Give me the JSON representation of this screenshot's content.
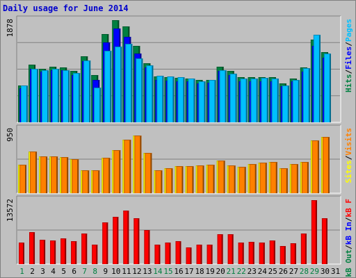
{
  "title": "Daily usage for June 2014",
  "colors": {
    "hits": "#008040",
    "files": "#0000ff",
    "pages": "#00c0ff",
    "visits": "#ffff00",
    "sites": "#ff8000",
    "kbin": "#0000ff",
    "kbout": "#008040",
    "kbf": "#ff0000",
    "weekend": "#008040",
    "weekday": "#000000"
  },
  "chart_data": [
    {
      "type": "bar",
      "categories": [
        "1",
        "2",
        "3",
        "4",
        "5",
        "6",
        "7",
        "8",
        "9",
        "10",
        "11",
        "12",
        "13",
        "14",
        "15",
        "16",
        "17",
        "18",
        "19",
        "20",
        "21",
        "22",
        "23",
        "24",
        "25",
        "26",
        "27",
        "28",
        "29",
        "30",
        "31"
      ],
      "ymax_label": "1878",
      "ylim": [
        0,
        1878
      ],
      "side_labels": [
        "Pages",
        "Files",
        "Hits"
      ],
      "series": [
        {
          "name": "Hits",
          "values": [
            680,
            1060,
            990,
            1020,
            1010,
            940,
            1220,
            870,
            1620,
            1878,
            1760,
            1400,
            1090,
            840,
            830,
            820,
            810,
            780,
            780,
            1020,
            940,
            830,
            830,
            830,
            830,
            720,
            810,
            1010,
            1520,
            1290,
            null
          ]
        },
        {
          "name": "Files",
          "values": [
            620,
            990,
            930,
            960,
            960,
            870,
            1130,
            780,
            1470,
            1730,
            1570,
            1270,
            1010,
            780,
            770,
            760,
            750,
            720,
            730,
            940,
            870,
            760,
            760,
            760,
            760,
            660,
            750,
            930,
            1400,
            1190,
            null
          ]
        },
        {
          "name": "Pages",
          "values": [
            680,
            990,
            960,
            980,
            960,
            910,
            1140,
            640,
            1320,
            1390,
            1440,
            1180,
            1050,
            850,
            840,
            830,
            800,
            750,
            780,
            960,
            900,
            810,
            810,
            820,
            800,
            680,
            780,
            1000,
            1610,
            1270,
            null
          ]
        }
      ]
    },
    {
      "type": "bar",
      "categories": [
        "1",
        "2",
        "3",
        "4",
        "5",
        "6",
        "7",
        "8",
        "9",
        "10",
        "11",
        "12",
        "13",
        "14",
        "15",
        "16",
        "17",
        "18",
        "19",
        "20",
        "21",
        "22",
        "23",
        "24",
        "25",
        "26",
        "27",
        "28",
        "29",
        "30",
        "31"
      ],
      "ymax_label": "950",
      "ylim": [
        0,
        950
      ],
      "side_labels": [
        "Visits",
        "Sites"
      ],
      "series": [
        {
          "name": "Visits",
          "values": [
            420,
            620,
            550,
            550,
            540,
            510,
            340,
            340,
            530,
            640,
            800,
            860,
            600,
            340,
            370,
            400,
            400,
            410,
            420,
            490,
            410,
            390,
            430,
            450,
            460,
            370,
            430,
            460,
            780,
            840,
            null
          ]
        },
        {
          "name": "Sites",
          "values": [
            420,
            620,
            550,
            550,
            540,
            510,
            340,
            340,
            530,
            640,
            800,
            860,
            600,
            340,
            370,
            400,
            400,
            410,
            420,
            490,
            410,
            390,
            430,
            450,
            460,
            370,
            430,
            460,
            780,
            840,
            null
          ]
        }
      ]
    },
    {
      "type": "bar",
      "categories": [
        "1",
        "2",
        "3",
        "4",
        "5",
        "6",
        "7",
        "8",
        "9",
        "10",
        "11",
        "12",
        "13",
        "14",
        "15",
        "16",
        "17",
        "18",
        "19",
        "20",
        "21",
        "22",
        "23",
        "24",
        "25",
        "26",
        "27",
        "28",
        "29",
        "30",
        "31"
      ],
      "ymax_label": "13572",
      "ylim": [
        0,
        13572
      ],
      "side_labels": [
        "kB F",
        "kB In",
        "kB Out"
      ],
      "series": [
        {
          "name": "kB In",
          "values": [
            0,
            0,
            0,
            0,
            0,
            0,
            0,
            0,
            0,
            0,
            0,
            0,
            0,
            0,
            0,
            0,
            0,
            0,
            0,
            0,
            0,
            0,
            0,
            0,
            0,
            0,
            0,
            0,
            0,
            0,
            null
          ]
        },
        {
          "name": "kB Out",
          "values": [
            0,
            0,
            0,
            0,
            0,
            0,
            0,
            0,
            0,
            0,
            0,
            0,
            0,
            0,
            0,
            0,
            0,
            0,
            0,
            0,
            0,
            0,
            0,
            0,
            0,
            0,
            0,
            0,
            0,
            0,
            null
          ]
        },
        {
          "name": "kB F",
          "values": [
            4600,
            6800,
            5200,
            5000,
            5500,
            4900,
            6500,
            4200,
            8800,
            10000,
            11400,
            9800,
            7200,
            4200,
            4600,
            4800,
            3500,
            4100,
            4200,
            6300,
            6300,
            4600,
            4700,
            4600,
            5000,
            3800,
            4400,
            6500,
            13572,
            9800,
            null
          ]
        }
      ]
    }
  ],
  "x_labels": [
    {
      "text": "1",
      "weekend": true
    },
    {
      "text": "2",
      "weekend": false
    },
    {
      "text": "3",
      "weekend": false
    },
    {
      "text": "4",
      "weekend": false
    },
    {
      "text": "5",
      "weekend": false
    },
    {
      "text": "6",
      "weekend": false
    },
    {
      "text": "7",
      "weekend": true
    },
    {
      "text": "8",
      "weekend": true
    },
    {
      "text": "9",
      "weekend": false
    },
    {
      "text": "10",
      "weekend": false
    },
    {
      "text": "11",
      "weekend": false
    },
    {
      "text": "12",
      "weekend": false
    },
    {
      "text": "13",
      "weekend": false
    },
    {
      "text": "14",
      "weekend": true
    },
    {
      "text": "15",
      "weekend": true
    },
    {
      "text": "16",
      "weekend": false
    },
    {
      "text": "17",
      "weekend": false
    },
    {
      "text": "18",
      "weekend": false
    },
    {
      "text": "19",
      "weekend": false
    },
    {
      "text": "20",
      "weekend": false
    },
    {
      "text": "21",
      "weekend": true
    },
    {
      "text": "22",
      "weekend": true
    },
    {
      "text": "23",
      "weekend": false
    },
    {
      "text": "24",
      "weekend": false
    },
    {
      "text": "25",
      "weekend": false
    },
    {
      "text": "26",
      "weekend": false
    },
    {
      "text": "27",
      "weekend": false
    },
    {
      "text": "28",
      "weekend": true
    },
    {
      "text": "29",
      "weekend": true
    },
    {
      "text": "30",
      "weekend": false
    },
    {
      "text": "31",
      "weekend": false
    }
  ]
}
